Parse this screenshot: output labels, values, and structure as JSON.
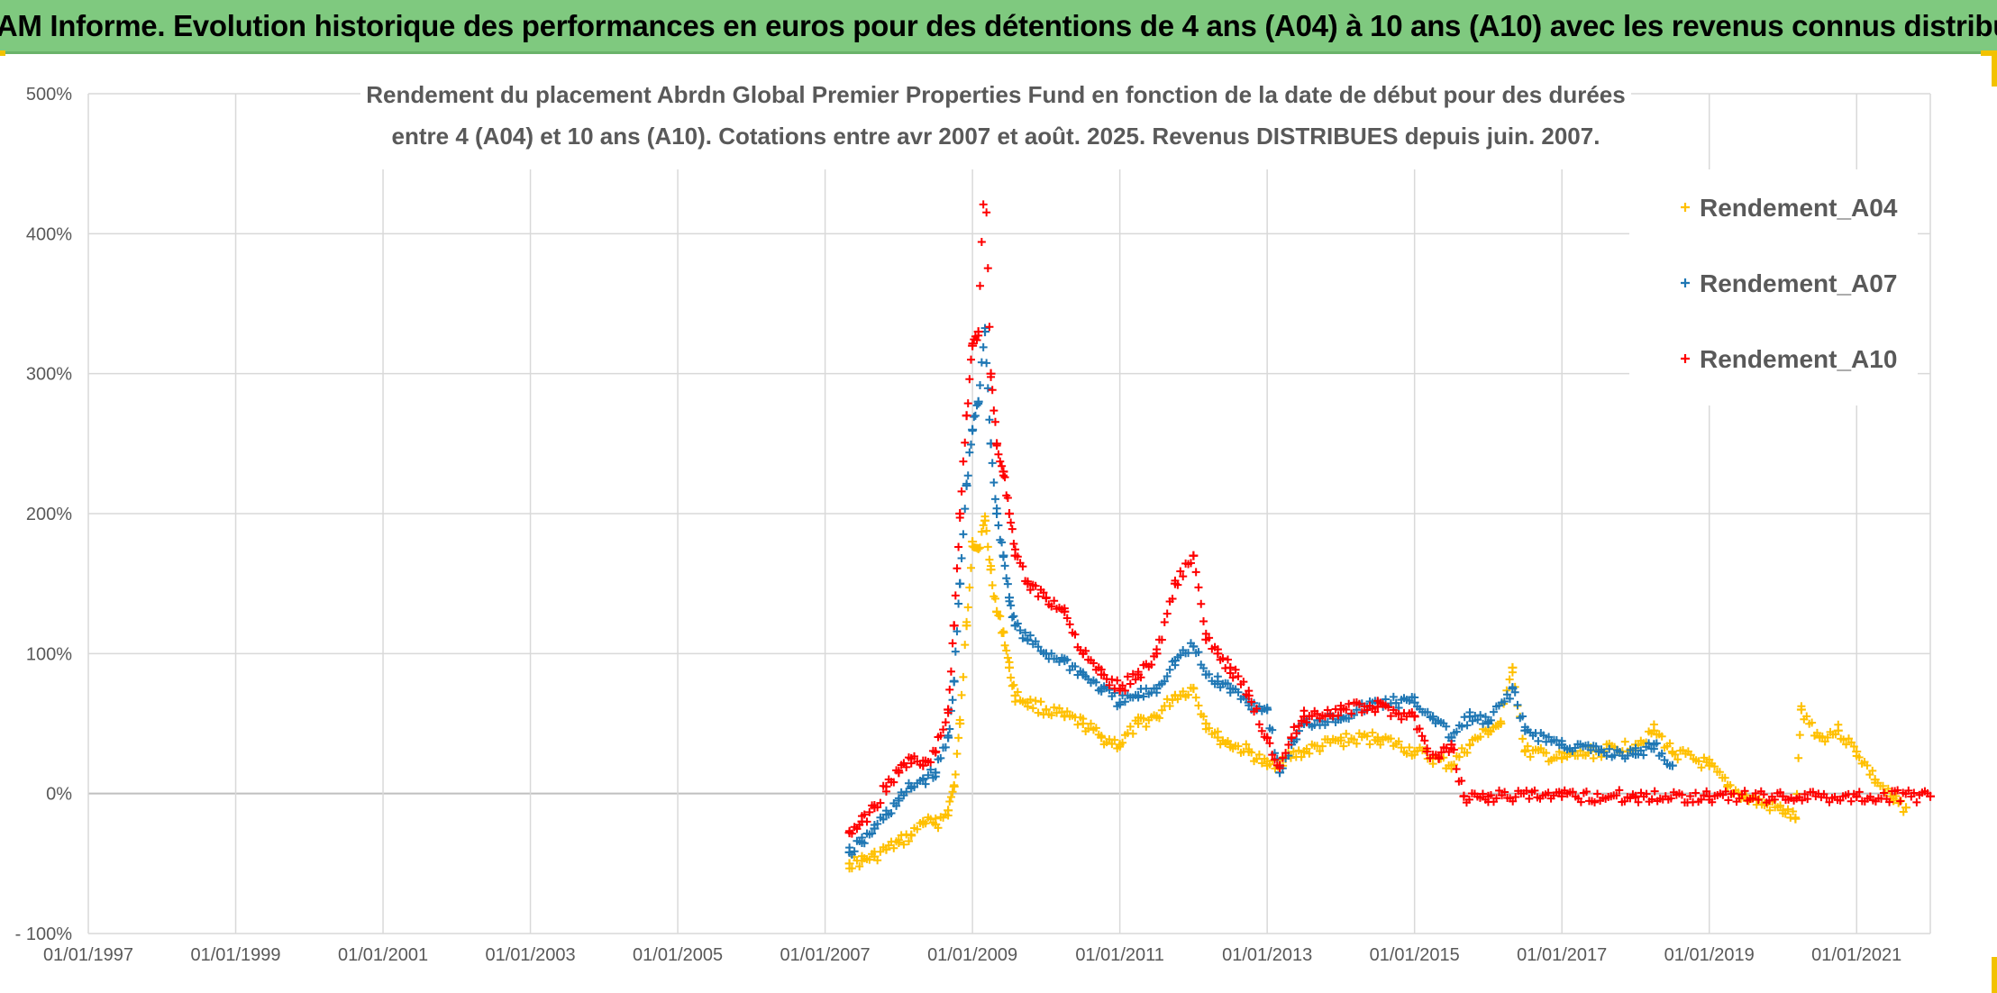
{
  "banner": {
    "text": "ADAM Informe. Evolution historique des performances en euros pour des détentions de 4 ans (A04) à 10 ans (A10) avec les revenus connus distribués"
  },
  "chart_data": {
    "type": "scatter",
    "title_lines": [
      "Rendement du placement Abrdn Global Premier Properties Fund en fonction de la date de début pour des durées",
      "entre 4 (A04) et 10 ans (A10). Cotations entre avr 2007 et août. 2025. Revenus DISTRIBUES depuis juin. 2007."
    ],
    "xlabel": "",
    "ylabel": "",
    "x_ticks": [
      "01/01/1997",
      "01/01/1999",
      "01/01/2001",
      "01/01/2003",
      "01/01/2005",
      "01/01/2007",
      "01/01/2009",
      "01/01/2011",
      "01/01/2013",
      "01/01/2015",
      "01/01/2017",
      "01/01/2019",
      "01/01/2021"
    ],
    "y_ticks": [
      "500%",
      "400%",
      "300%",
      "200%",
      "100%",
      "0%",
      "- 100%"
    ],
    "ylim": [
      -100,
      500
    ],
    "xlim": [
      1997.0,
      2022.0
    ],
    "grid": true,
    "legend_position": "top-right",
    "series": [
      {
        "name": "Rendement_A04",
        "color": "#ffc000",
        "marker": "plus",
        "points": [
          [
            2007.33,
            -50
          ],
          [
            2007.5,
            -48
          ],
          [
            2007.67,
            -45
          ],
          [
            2007.83,
            -40
          ],
          [
            2008.0,
            -35
          ],
          [
            2008.17,
            -30
          ],
          [
            2008.33,
            -20
          ],
          [
            2008.5,
            -22
          ],
          [
            2008.67,
            -12
          ],
          [
            2008.75,
            5
          ],
          [
            2008.83,
            50
          ],
          [
            2008.92,
            120
          ],
          [
            2009.0,
            180
          ],
          [
            2009.08,
            175
          ],
          [
            2009.17,
            195
          ],
          [
            2009.25,
            160
          ],
          [
            2009.33,
            130
          ],
          [
            2009.42,
            115
          ],
          [
            2009.5,
            90
          ],
          [
            2009.58,
            70
          ],
          [
            2009.75,
            65
          ],
          [
            2010.0,
            60
          ],
          [
            2010.25,
            55
          ],
          [
            2010.5,
            50
          ],
          [
            2010.75,
            40
          ],
          [
            2011.0,
            35
          ],
          [
            2011.25,
            50
          ],
          [
            2011.5,
            55
          ],
          [
            2011.75,
            70
          ],
          [
            2012.0,
            75
          ],
          [
            2012.17,
            50
          ],
          [
            2012.33,
            40
          ],
          [
            2012.5,
            35
          ],
          [
            2012.75,
            30
          ],
          [
            2013.0,
            20
          ],
          [
            2013.25,
            25
          ],
          [
            2013.5,
            30
          ],
          [
            2014.0,
            38
          ],
          [
            2014.5,
            40
          ],
          [
            2015.0,
            30
          ],
          [
            2015.25,
            25
          ],
          [
            2015.5,
            20
          ],
          [
            2015.75,
            35
          ],
          [
            2016.0,
            45
          ],
          [
            2016.17,
            50
          ],
          [
            2016.33,
            90
          ],
          [
            2016.5,
            30
          ],
          [
            2017.0,
            25
          ],
          [
            2017.5,
            30
          ],
          [
            2018.0,
            35
          ],
          [
            2018.25,
            45
          ],
          [
            2018.5,
            30
          ],
          [
            2019.0,
            20
          ],
          [
            2019.25,
            5
          ],
          [
            2019.5,
            -3
          ],
          [
            2019.75,
            -8
          ],
          [
            2020.0,
            -12
          ],
          [
            2020.17,
            -18
          ],
          [
            2020.25,
            60
          ],
          [
            2020.5,
            40
          ],
          [
            2020.75,
            45
          ],
          [
            2021.0,
            30
          ],
          [
            2021.25,
            10
          ],
          [
            2021.5,
            -5
          ],
          [
            2021.67,
            -10
          ]
        ]
      },
      {
        "name": "Rendement_A07",
        "color": "#1f77b4",
        "marker": "plus",
        "points": [
          [
            2007.33,
            -42
          ],
          [
            2007.5,
            -35
          ],
          [
            2007.67,
            -25
          ],
          [
            2007.83,
            -15
          ],
          [
            2008.0,
            -5
          ],
          [
            2008.17,
            5
          ],
          [
            2008.33,
            10
          ],
          [
            2008.5,
            15
          ],
          [
            2008.67,
            40
          ],
          [
            2008.75,
            80
          ],
          [
            2008.83,
            150
          ],
          [
            2008.92,
            220
          ],
          [
            2009.0,
            260
          ],
          [
            2009.08,
            280
          ],
          [
            2009.17,
            330
          ],
          [
            2009.25,
            250
          ],
          [
            2009.33,
            200
          ],
          [
            2009.42,
            170
          ],
          [
            2009.5,
            140
          ],
          [
            2009.58,
            120
          ],
          [
            2009.75,
            110
          ],
          [
            2010.0,
            100
          ],
          [
            2010.25,
            95
          ],
          [
            2010.5,
            85
          ],
          [
            2010.75,
            75
          ],
          [
            2011.0,
            65
          ],
          [
            2011.25,
            70
          ],
          [
            2011.5,
            75
          ],
          [
            2011.75,
            95
          ],
          [
            2012.0,
            105
          ],
          [
            2012.17,
            85
          ],
          [
            2012.33,
            80
          ],
          [
            2012.5,
            75
          ],
          [
            2012.75,
            65
          ],
          [
            2013.0,
            60
          ],
          [
            2013.17,
            15
          ],
          [
            2013.33,
            35
          ],
          [
            2013.5,
            50
          ],
          [
            2014.0,
            55
          ],
          [
            2014.5,
            65
          ],
          [
            2015.0,
            65
          ],
          [
            2015.25,
            55
          ],
          [
            2015.5,
            40
          ],
          [
            2015.75,
            55
          ],
          [
            2016.0,
            50
          ],
          [
            2016.33,
            75
          ],
          [
            2016.5,
            45
          ],
          [
            2017.0,
            35
          ],
          [
            2017.5,
            30
          ],
          [
            2018.0,
            28
          ],
          [
            2018.25,
            35
          ],
          [
            2018.5,
            20
          ]
        ]
      },
      {
        "name": "Rendement_A10",
        "color": "#ff0000",
        "marker": "plus",
        "points": [
          [
            2007.33,
            -28
          ],
          [
            2007.5,
            -20
          ],
          [
            2007.67,
            -10
          ],
          [
            2007.83,
            5
          ],
          [
            2008.0,
            15
          ],
          [
            2008.17,
            25
          ],
          [
            2008.33,
            20
          ],
          [
            2008.5,
            30
          ],
          [
            2008.67,
            60
          ],
          [
            2008.75,
            120
          ],
          [
            2008.83,
            200
          ],
          [
            2008.92,
            270
          ],
          [
            2009.0,
            320
          ],
          [
            2009.08,
            330
          ],
          [
            2009.17,
            450
          ],
          [
            2009.25,
            300
          ],
          [
            2009.33,
            250
          ],
          [
            2009.42,
            230
          ],
          [
            2009.5,
            200
          ],
          [
            2009.58,
            170
          ],
          [
            2009.75,
            150
          ],
          [
            2010.0,
            140
          ],
          [
            2010.25,
            130
          ],
          [
            2010.5,
            100
          ],
          [
            2010.75,
            85
          ],
          [
            2011.0,
            75
          ],
          [
            2011.25,
            85
          ],
          [
            2011.5,
            100
          ],
          [
            2011.75,
            150
          ],
          [
            2012.0,
            170
          ],
          [
            2012.17,
            110
          ],
          [
            2012.33,
            100
          ],
          [
            2012.5,
            90
          ],
          [
            2012.75,
            70
          ],
          [
            2013.0,
            40
          ],
          [
            2013.17,
            20
          ],
          [
            2013.33,
            40
          ],
          [
            2013.5,
            55
          ],
          [
            2014.0,
            60
          ],
          [
            2014.5,
            62
          ],
          [
            2015.0,
            55
          ],
          [
            2015.17,
            30
          ],
          [
            2015.33,
            25
          ],
          [
            2015.5,
            35
          ],
          [
            2015.67,
            -2
          ],
          [
            2016.0,
            -2
          ],
          [
            2017.0,
            -2
          ],
          [
            2018.0,
            -2
          ],
          [
            2019.0,
            -2
          ],
          [
            2020.0,
            -2
          ],
          [
            2021.0,
            -2
          ],
          [
            2022.0,
            -2
          ]
        ]
      }
    ]
  }
}
